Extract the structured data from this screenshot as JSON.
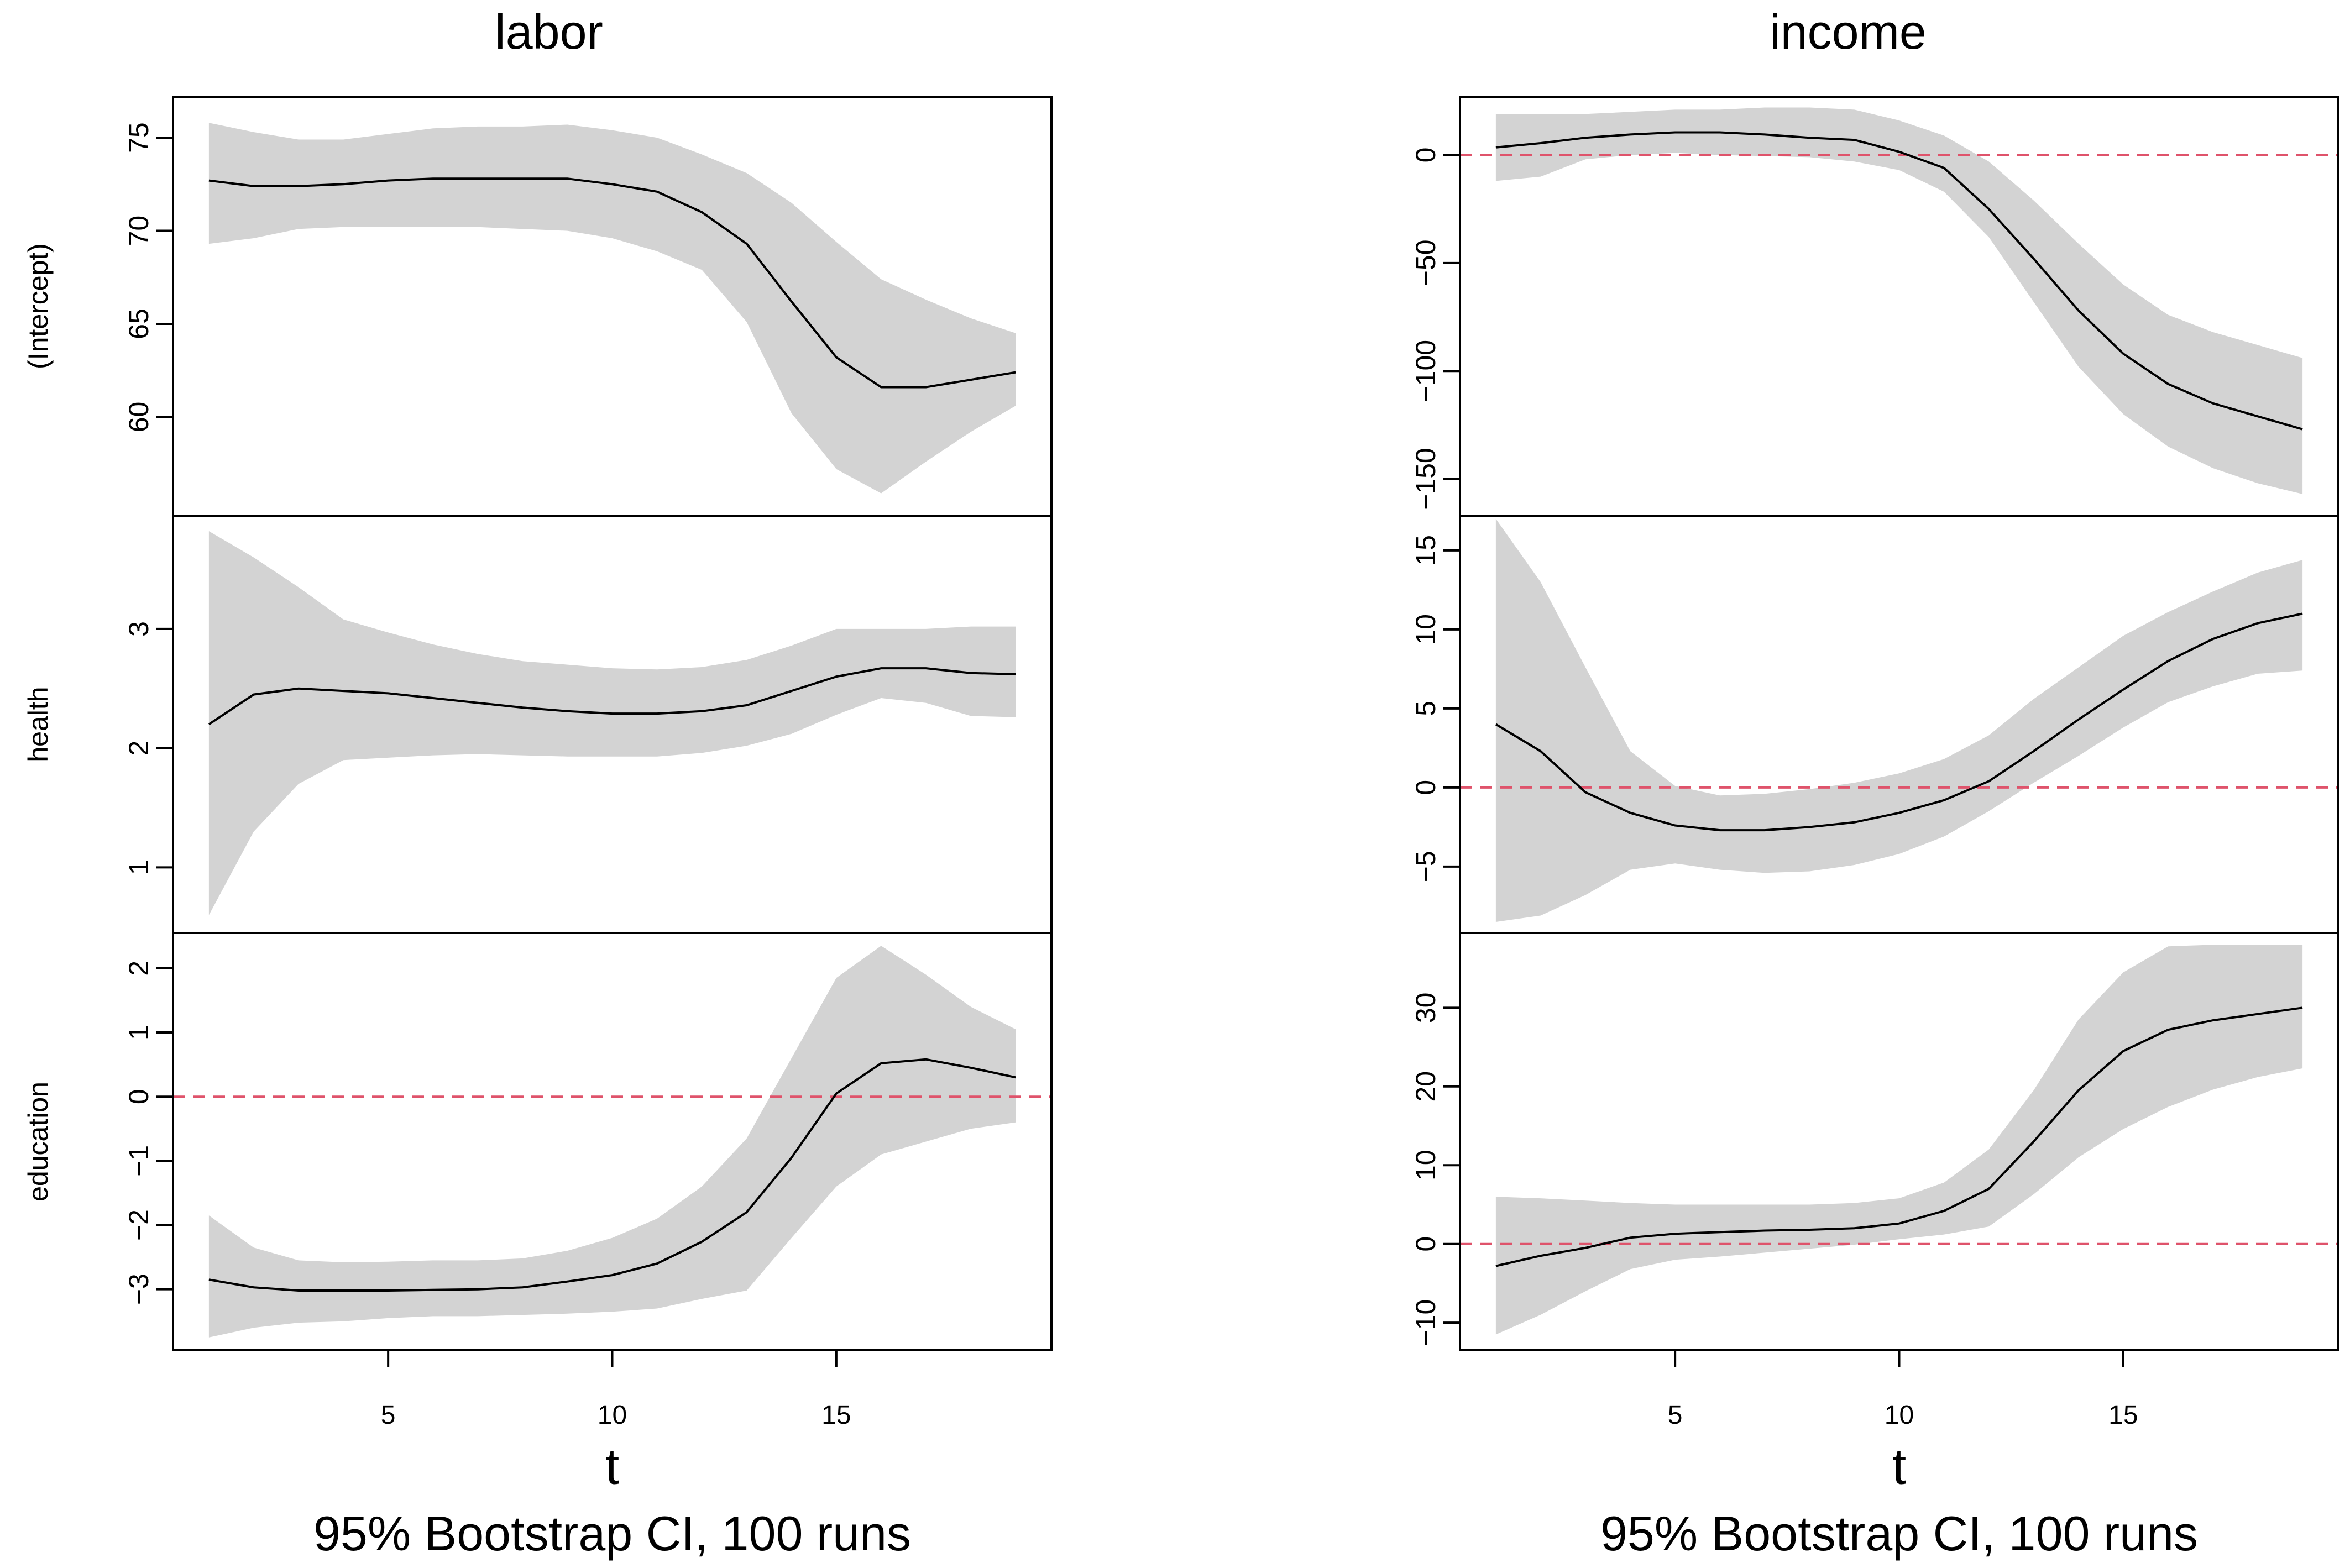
{
  "colors": {
    "band": "#d3d3d3",
    "line": "#000000",
    "reference": "#df536b"
  },
  "chart_data": [
    {
      "type": "line",
      "title": "labor",
      "xlabel": "t",
      "caption": "95% Bootstrap CI, 100 runs",
      "x": [
        1,
        2,
        3,
        4,
        5,
        6,
        7,
        8,
        9,
        10,
        11,
        12,
        13,
        14,
        15,
        16,
        17,
        18,
        19
      ],
      "xlim": [
        0.2,
        19.8
      ],
      "xticks": [
        5,
        10,
        15
      ],
      "panels": [
        {
          "ylabel": "(Intercept)",
          "ylim": [
            54.7,
            77.2
          ],
          "yticks": [
            60,
            65,
            70,
            75
          ],
          "reference_line": null,
          "estimate": [
            72.7,
            72.4,
            72.4,
            72.5,
            72.7,
            72.8,
            72.8,
            72.8,
            72.8,
            72.5,
            72.1,
            71.0,
            69.3,
            66.2,
            63.2,
            61.6,
            61.6,
            62.0,
            62.4
          ],
          "lower": [
            69.3,
            69.6,
            70.1,
            70.2,
            70.2,
            70.2,
            70.2,
            70.1,
            70.0,
            69.6,
            68.9,
            67.9,
            65.1,
            60.2,
            57.2,
            55.9,
            57.6,
            59.2,
            60.6
          ],
          "upper": [
            75.8,
            75.3,
            74.9,
            74.9,
            75.2,
            75.5,
            75.6,
            75.6,
            75.7,
            75.4,
            75.0,
            74.1,
            73.1,
            71.5,
            69.4,
            67.4,
            66.3,
            65.3,
            64.5
          ]
        },
        {
          "ylabel": "health",
          "ylim": [
            0.45,
            3.95
          ],
          "yticks": [
            1.0,
            2.0,
            3.0
          ],
          "reference_line": null,
          "estimate": [
            2.2,
            2.45,
            2.5,
            2.48,
            2.46,
            2.42,
            2.38,
            2.34,
            2.31,
            2.29,
            2.29,
            2.31,
            2.36,
            2.48,
            2.6,
            2.67,
            2.67,
            2.63,
            2.62
          ],
          "lower": [
            0.6,
            1.3,
            1.7,
            1.9,
            1.92,
            1.94,
            1.95,
            1.94,
            1.93,
            1.93,
            1.93,
            1.96,
            2.02,
            2.12,
            2.28,
            2.42,
            2.38,
            2.27,
            2.26
          ],
          "upper": [
            3.82,
            3.6,
            3.35,
            3.08,
            2.97,
            2.87,
            2.79,
            2.73,
            2.7,
            2.67,
            2.66,
            2.68,
            2.74,
            2.86,
            3.0,
            3.0,
            3.0,
            3.02,
            3.02
          ]
        },
        {
          "ylabel": "education",
          "ylim": [
            -3.95,
            2.55
          ],
          "yticks": [
            -3,
            -2,
            -1,
            0,
            1,
            2
          ],
          "reference_line": 0,
          "estimate": [
            -2.85,
            -2.97,
            -3.02,
            -3.02,
            -3.02,
            -3.01,
            -3.0,
            -2.97,
            -2.88,
            -2.78,
            -2.6,
            -2.26,
            -1.8,
            -0.95,
            0.05,
            0.52,
            0.58,
            0.45,
            0.3
          ],
          "lower": [
            -3.75,
            -3.6,
            -3.52,
            -3.5,
            -3.45,
            -3.42,
            -3.42,
            -3.4,
            -3.38,
            -3.35,
            -3.3,
            -3.15,
            -3.02,
            -2.2,
            -1.4,
            -0.9,
            -0.7,
            -0.5,
            -0.4
          ],
          "upper": [
            -1.85,
            -2.35,
            -2.55,
            -2.58,
            -2.57,
            -2.55,
            -2.55,
            -2.52,
            -2.4,
            -2.2,
            -1.9,
            -1.4,
            -0.65,
            0.6,
            1.85,
            2.35,
            1.9,
            1.4,
            1.05
          ]
        }
      ]
    },
    {
      "type": "line",
      "title": "income",
      "xlabel": "t",
      "caption": "95% Bootstrap CI, 100 runs",
      "x": [
        1,
        2,
        3,
        4,
        5,
        6,
        7,
        8,
        9,
        10,
        11,
        12,
        13,
        14,
        15,
        16,
        17,
        18,
        19
      ],
      "xlim": [
        0.2,
        19.8
      ],
      "xticks": [
        5,
        10,
        15
      ],
      "panels": [
        {
          "ylabel": "(Intercept)",
          "ylim": [
            -167,
            27
          ],
          "yticks": [
            -150,
            -100,
            -50,
            0
          ],
          "reference_line": 0,
          "estimate": [
            3.5,
            5.5,
            8,
            9.5,
            10.5,
            10.5,
            9.5,
            8,
            7,
            1.5,
            -6,
            -25,
            -48,
            -72,
            -92,
            -106,
            -115,
            -121,
            -127
          ],
          "lower": [
            -12,
            -10,
            -2,
            0,
            1,
            0,
            -0.5,
            -1,
            -3,
            -7,
            -17,
            -38,
            -68,
            -98,
            -120,
            -135,
            -145,
            -152,
            -157
          ],
          "upper": [
            19,
            19,
            19,
            20,
            21,
            21,
            22,
            22,
            21,
            16,
            9,
            -3,
            -21,
            -41,
            -60,
            -74,
            -82,
            -88,
            -94
          ]
        },
        {
          "ylabel": "health",
          "ylim": [
            -9.2,
            17.2
          ],
          "yticks": [
            -5,
            0,
            5,
            10,
            15
          ],
          "reference_line": 0,
          "estimate": [
            4.0,
            2.3,
            -0.3,
            -1.6,
            -2.4,
            -2.7,
            -2.7,
            -2.5,
            -2.2,
            -1.6,
            -0.8,
            0.4,
            2.3,
            4.3,
            6.2,
            8.0,
            9.4,
            10.4,
            11.0
          ],
          "lower": [
            -8.5,
            -8.1,
            -6.8,
            -5.2,
            -4.8,
            -5.2,
            -5.4,
            -5.3,
            -4.9,
            -4.2,
            -3.1,
            -1.5,
            0.3,
            2.0,
            3.8,
            5.4,
            6.4,
            7.2,
            7.4
          ],
          "upper": [
            17.0,
            13.0,
            7.6,
            2.3,
            0.1,
            -0.5,
            -0.4,
            -0.1,
            0.3,
            0.9,
            1.8,
            3.3,
            5.6,
            7.6,
            9.6,
            11.1,
            12.4,
            13.6,
            14.4
          ]
        },
        {
          "ylabel": "education",
          "ylim": [
            -13.5,
            39.5
          ],
          "yticks": [
            -10,
            0,
            10,
            20,
            30
          ],
          "reference_line": 0,
          "estimate": [
            -2.8,
            -1.5,
            -0.5,
            0.8,
            1.3,
            1.5,
            1.7,
            1.8,
            2.0,
            2.6,
            4.2,
            7.0,
            13.0,
            19.5,
            24.5,
            27.2,
            28.4,
            29.2,
            30.0
          ],
          "lower": [
            -11.5,
            -9.0,
            -6.0,
            -3.2,
            -2.0,
            -1.6,
            -1.1,
            -0.6,
            -0.1,
            0.6,
            1.2,
            2.2,
            6.3,
            11.0,
            14.6,
            17.4,
            19.6,
            21.2,
            22.3
          ],
          "upper": [
            6.0,
            5.8,
            5.5,
            5.2,
            5.0,
            5.0,
            5.0,
            5.0,
            5.2,
            5.8,
            7.8,
            12.0,
            19.5,
            28.5,
            34.5,
            37.8,
            38.0,
            38.0,
            38.0
          ]
        }
      ]
    }
  ]
}
